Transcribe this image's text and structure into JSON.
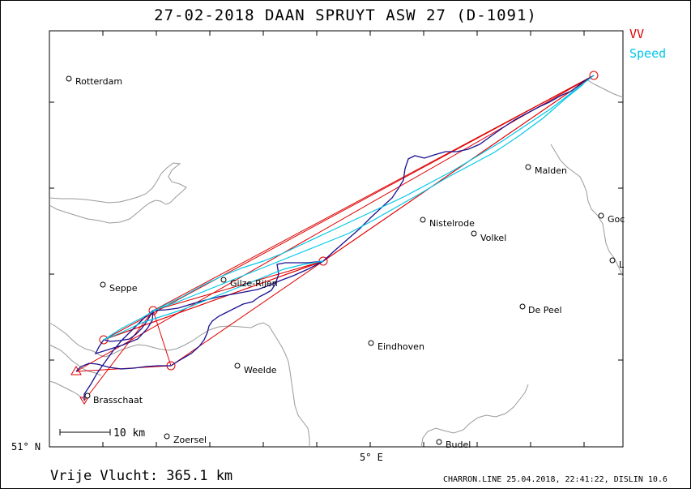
{
  "title": "27-02-2018    DAAN SPRUYT    ASW 27 (D-1091)",
  "legend": {
    "vv": "VV",
    "speed": "Speed",
    "colors": {
      "vv": "#e00000",
      "speed": "#00c8e8",
      "track": "#1a1090"
    }
  },
  "cities": [
    {
      "name": "Rotterdam"
    },
    {
      "name": "Seppe"
    },
    {
      "name": "Gilze-Rijen"
    },
    {
      "name": "Brasschaat"
    },
    {
      "name": "Weelde"
    },
    {
      "name": "Zoersel"
    },
    {
      "name": "Eindhoven"
    },
    {
      "name": "Nistelrode"
    },
    {
      "name": "Volkel"
    },
    {
      "name": "Malden"
    },
    {
      "name": "De Peel"
    },
    {
      "name": "Budel"
    },
    {
      "name": "Goc"
    },
    {
      "name": "L"
    }
  ],
  "axes": {
    "lat_label": "51° N",
    "lon_label": "5° E"
  },
  "scale_bar": {
    "label": "10 km"
  },
  "footer": {
    "distance": "Vrije Vlucht:  365.1 km",
    "credit": "CHARRON.LINE 25.04.2018, 22:41:22, DISLIN 10.6"
  }
}
